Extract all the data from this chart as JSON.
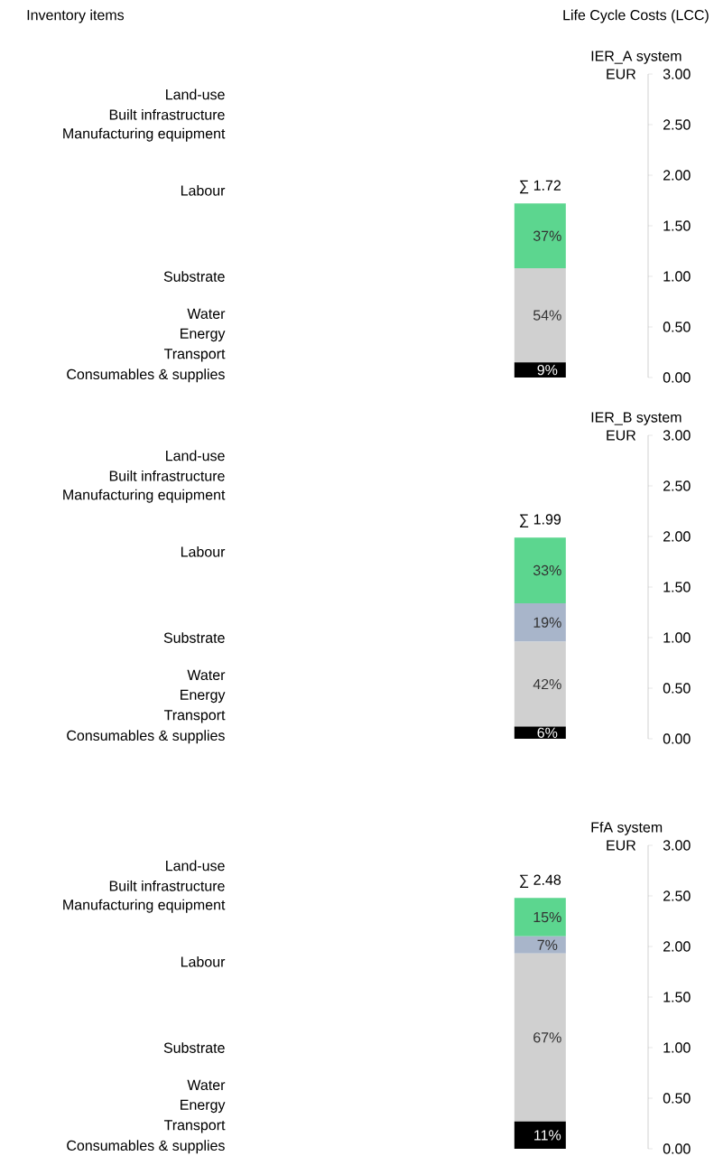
{
  "chart_data": [
    {
      "type": "other",
      "annotations": [
        "Inventory items",
        "Life Cycle Costs (LCC)"
      ]
    },
    {
      "type": "bar",
      "stacked": true,
      "title": "IER_A system",
      "ylabel": "EUR",
      "categories": [
        null
      ],
      "ylim": [
        0,
        3
      ],
      "yticks": [
        {
          "value": 0,
          "label": "0.00"
        },
        {
          "value": 0.5,
          "label": "0.50"
        },
        {
          "value": 1,
          "label": "1.00"
        },
        {
          "value": 1.5,
          "label": "1.50"
        },
        {
          "value": 2,
          "label": "2.00"
        },
        {
          "value": 2.5,
          "label": "2.50"
        },
        {
          "value": 3,
          "label": "3.00"
        }
      ],
      "series": [
        {
          "color": "#000000",
          "values": [
            0.15
          ]
        },
        {
          "color": "#d0d0d0",
          "values": [
            0.93
          ]
        },
        {
          "color": "#5cd68f",
          "values": [
            0.64
          ]
        }
      ],
      "totals": [
        "∑ 1.72"
      ],
      "annotations": [
        "Land-use",
        "Built infrastructure",
        "Manufacturing equipment",
        "Labour",
        "Substrate",
        "Water",
        "Energy",
        "Transport",
        "Consumables & supplies",
        "9%",
        "54%",
        "37%"
      ]
    },
    {
      "type": "bar",
      "stacked": true,
      "title": "IER_B system",
      "ylabel": "EUR",
      "categories": [
        null
      ],
      "ylim": [
        0,
        3
      ],
      "yticks": [
        {
          "value": 0,
          "label": "0.00"
        },
        {
          "value": 0.5,
          "label": "0.50"
        },
        {
          "value": 1,
          "label": "1.00"
        },
        {
          "value": 1.5,
          "label": "1.50"
        },
        {
          "value": 2,
          "label": "2.00"
        },
        {
          "value": 2.5,
          "label": "2.50"
        },
        {
          "value": 3,
          "label": "3.00"
        }
      ],
      "series": [
        {
          "color": "#000000",
          "values": [
            0.12
          ]
        },
        {
          "color": "#d0d0d0",
          "values": [
            0.84
          ]
        },
        {
          "color": "#a8b5ca",
          "values": [
            0.38
          ]
        },
        {
          "color": "#5cd68f",
          "values": [
            0.65
          ]
        }
      ],
      "totals": [
        "∑ 1.99"
      ],
      "annotations": [
        "Land-use",
        "Built infrastructure",
        "Manufacturing equipment",
        "Labour",
        "Substrate",
        "Water",
        "Energy",
        "Transport",
        "Consumables & supplies",
        "6%",
        "42%",
        "19%",
        "33%"
      ]
    },
    {
      "type": "bar",
      "stacked": true,
      "title": "FfA system",
      "ylabel": "EUR",
      "categories": [
        null
      ],
      "ylim": [
        0,
        3
      ],
      "yticks": [
        {
          "value": 0,
          "label": "0.00"
        },
        {
          "value": 0.5,
          "label": "0.50"
        },
        {
          "value": 1,
          "label": "1.00"
        },
        {
          "value": 1.5,
          "label": "1.50"
        },
        {
          "value": 2,
          "label": "2.00"
        },
        {
          "value": 2.5,
          "label": "2.50"
        },
        {
          "value": 3,
          "label": "3.00"
        }
      ],
      "series": [
        {
          "color": "#000000",
          "values": [
            0.27
          ]
        },
        {
          "color": "#d0d0d0",
          "values": [
            1.66
          ]
        },
        {
          "color": "#a8b5ca",
          "values": [
            0.17
          ]
        },
        {
          "color": "#5cd68f",
          "values": [
            0.38
          ]
        }
      ],
      "totals": [
        "∑ 2.48"
      ],
      "annotations": [
        "Land-use",
        "Built infrastructure",
        "Manufacturing equipment",
        "Labour",
        "Substrate",
        "Water",
        "Energy",
        "Transport",
        "Consumables & supplies",
        "11%",
        "67%",
        "7%",
        "15%"
      ]
    }
  ]
}
